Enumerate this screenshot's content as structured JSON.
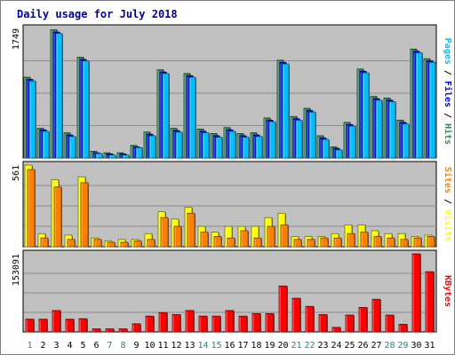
{
  "chart_data": {
    "type": "bar",
    "title": "Daily usage for July 2018",
    "categories": [
      "1",
      "2",
      "3",
      "4",
      "5",
      "6",
      "7",
      "8",
      "9",
      "10",
      "11",
      "12",
      "13",
      "14",
      "15",
      "16",
      "17",
      "18",
      "19",
      "20",
      "21",
      "22",
      "23",
      "24",
      "25",
      "26",
      "27",
      "28",
      "29",
      "30",
      "31"
    ],
    "weekend_days": [
      "1",
      "7",
      "8",
      "14",
      "15",
      "21",
      "22",
      "28",
      "29"
    ],
    "panels": [
      {
        "id": "pages-files-hits",
        "ymax_label": "1749",
        "ylim": [
          0,
          1749
        ],
        "right_label_parts": [
          {
            "text": "Pages",
            "color": "#00bfff"
          },
          {
            "text": " / ",
            "color": "#000000"
          },
          {
            "text": "Files",
            "color": "#0000ff"
          },
          {
            "text": " / ",
            "color": "#000000"
          },
          {
            "text": "Hits",
            "color": "#2e8b57"
          }
        ],
        "series": [
          {
            "name": "Hits",
            "color": "#2e8b57",
            "values": [
              1090,
              400,
              1730,
              340,
              1360,
              90,
              70,
              70,
              170,
              350,
              1190,
              400,
              1140,
              390,
              330,
              410,
              330,
              340,
              540,
              1320,
              560,
              670,
              300,
              150,
              480,
              1200,
              830,
              810,
              510,
              1470,
              1340
            ]
          },
          {
            "name": "Files",
            "color": "#0000ff",
            "values": [
              1060,
              380,
              1700,
              310,
              1330,
              70,
              55,
              55,
              150,
              320,
              1160,
              370,
              1110,
              360,
              300,
              380,
              300,
              310,
              510,
              1290,
              530,
              640,
              270,
              130,
              450,
              1170,
              800,
              780,
              480,
              1440,
              1310
            ]
          },
          {
            "name": "Pages",
            "color": "#00bfff",
            "values": [
              1040,
              360,
              1680,
              290,
              1310,
              60,
              40,
              40,
              140,
              300,
              1140,
              350,
              1090,
              340,
              280,
              360,
              280,
              290,
              490,
              1270,
              510,
              620,
              250,
              110,
              430,
              1150,
              780,
              760,
              460,
              1420,
              1290
            ]
          }
        ]
      },
      {
        "id": "sites-visits",
        "ymax_label": "561",
        "ylim": [
          0,
          561
        ],
        "right_label_parts": [
          {
            "text": "Sites",
            "color": "#ff8000"
          },
          {
            "text": " / ",
            "color": "#000000"
          },
          {
            "text": "Visits",
            "color": "#ffff00"
          }
        ],
        "series": [
          {
            "name": "Visits",
            "color": "#ffff00",
            "values": [
              561,
              90,
              460,
              80,
              480,
              60,
              40,
              50,
              50,
              90,
              240,
              190,
              270,
              140,
              100,
              140,
              140,
              140,
              200,
              230,
              70,
              70,
              70,
              90,
              150,
              150,
              110,
              90,
              90,
              70,
              80
            ]
          },
          {
            "name": "Sites",
            "color": "#ff8000",
            "values": [
              530,
              60,
              410,
              50,
              440,
              50,
              30,
              30,
              40,
              50,
              200,
              140,
              230,
              100,
              70,
              60,
              110,
              60,
              140,
              150,
              50,
              50,
              60,
              60,
              90,
              100,
              70,
              60,
              50,
              60,
              70
            ]
          }
        ]
      },
      {
        "id": "kbytes",
        "ymax_label": "153091",
        "ylim": [
          0,
          153091
        ],
        "right_label_parts": [
          {
            "text": "KBytes",
            "color": "#ff0000"
          }
        ],
        "series": [
          {
            "name": "KBytes",
            "color": "#ff0000",
            "values": [
              25000,
              25000,
              42000,
              25000,
              26000,
              6000,
              6000,
              6000,
              16000,
              31000,
              38000,
              34000,
              42000,
              31000,
              31000,
              42000,
              31000,
              36000,
              36000,
              90000,
              66000,
              50000,
              34000,
              9000,
              33000,
              48000,
              64000,
              33000,
              15000,
              153091,
              118000
            ]
          }
        ]
      }
    ]
  }
}
